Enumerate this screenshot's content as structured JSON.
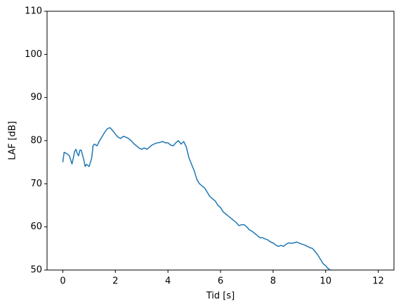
{
  "chart_data": {
    "type": "line",
    "xlabel": "Tid [s]",
    "ylabel": "LAF [dB]",
    "color": "#1f77b4",
    "xlim": [
      -0.6,
      12.6
    ],
    "ylim": [
      50,
      110
    ],
    "xticks": [
      0,
      2,
      4,
      6,
      8,
      10,
      12
    ],
    "yticks": [
      50,
      60,
      70,
      80,
      90,
      100,
      110
    ],
    "x": [
      0,
      0.05,
      0.15,
      0.25,
      0.3,
      0.35,
      0.4,
      0.45,
      0.5,
      0.55,
      0.6,
      0.65,
      0.7,
      0.8,
      0.85,
      0.9,
      1.0,
      1.05,
      1.1,
      1.15,
      1.2,
      1.3,
      1.4,
      1.5,
      1.6,
      1.7,
      1.8,
      1.9,
      2.0,
      2.1,
      2.2,
      2.3,
      2.4,
      2.5,
      2.6,
      2.7,
      2.8,
      2.9,
      3.0,
      3.1,
      3.2,
      3.3,
      3.4,
      3.5,
      3.6,
      3.7,
      3.8,
      3.9,
      4.0,
      4.1,
      4.2,
      4.3,
      4.4,
      4.5,
      4.6,
      4.7,
      4.8,
      4.9,
      5.0,
      5.1,
      5.2,
      5.3,
      5.4,
      5.5,
      5.6,
      5.7,
      5.8,
      5.9,
      6.0,
      6.1,
      6.2,
      6.3,
      6.4,
      6.5,
      6.6,
      6.7,
      6.8,
      6.9,
      7.0,
      7.1,
      7.2,
      7.3,
      7.4,
      7.5,
      7.6,
      7.7,
      7.8,
      7.9,
      8.0,
      8.1,
      8.2,
      8.3,
      8.4,
      8.5,
      8.6,
      8.7,
      8.8,
      8.9,
      9.0,
      9.1,
      9.2,
      9.3,
      9.4,
      9.5,
      9.6,
      9.7,
      9.8,
      9.9,
      10.0,
      10.1,
      10.2
    ],
    "values": [
      75,
      77.3,
      77,
      76.5,
      75.5,
      74.6,
      76,
      77.5,
      78,
      77,
      76.5,
      77.8,
      77.8,
      75.5,
      74,
      74.5,
      74,
      75,
      76,
      78.8,
      79.2,
      78.8,
      80,
      81,
      82,
      82.8,
      83,
      82.3,
      81.5,
      80.8,
      80.5,
      81,
      80.8,
      80.5,
      80,
      79.3,
      78.8,
      78.3,
      78,
      78.3,
      78,
      78.5,
      79,
      79.3,
      79.5,
      79.6,
      79.8,
      79.5,
      79.5,
      79,
      78.8,
      79.5,
      80,
      79.2,
      79.8,
      78.5,
      76,
      74.5,
      73,
      71,
      70,
      69.5,
      69,
      68,
      67,
      66.5,
      66,
      65,
      64.5,
      63.5,
      63,
      62.5,
      62,
      61.5,
      61,
      60.3,
      60.5,
      60.5,
      60,
      59.3,
      59,
      58.5,
      58,
      57.5,
      57.5,
      57.2,
      57,
      56.5,
      56.3,
      55.8,
      55.5,
      55.7,
      55.5,
      56,
      56.3,
      56.2,
      56.3,
      56.5,
      56.2,
      56,
      55.8,
      55.5,
      55.2,
      55,
      54.3,
      53.5,
      52.5,
      51.5,
      51,
      50.3,
      50
    ]
  }
}
